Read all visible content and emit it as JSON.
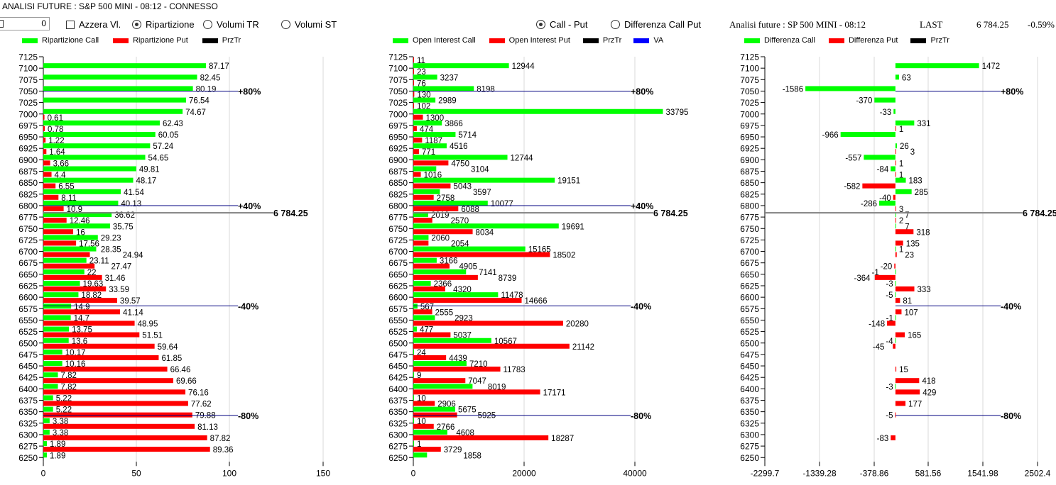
{
  "header": {
    "title": "ANALISI FUTURE : S&P 500 MINI - 08:12 - CONNESSO",
    "number_input_value": "0",
    "azzera_label": "Azzera Vl.",
    "radio_left": [
      {
        "label": "Ripartizione",
        "selected": true
      },
      {
        "label": "Volumi TR",
        "selected": false
      },
      {
        "label": "Volumi ST",
        "selected": false
      }
    ],
    "radio_mid": [
      {
        "label": "Call - Put",
        "selected": true
      },
      {
        "label": "Differenza Call Put",
        "selected": false
      }
    ],
    "right_title": "Analisi future : SP 500 MINI - 08:12",
    "last_label": "LAST",
    "last_value": "6 784.25",
    "last_change": "-0.59%"
  },
  "colors": {
    "call": "#00ff00",
    "put": "#ff0000",
    "przTr": "#000000",
    "va": "#0000ff",
    "level_line": "#000080",
    "price_line": "#808080",
    "grid": "#d8d8d8"
  },
  "chart_data": [
    {
      "type": "bar",
      "orientation": "horizontal",
      "title": "Ripartizione",
      "legend": [
        "Ripartizione Call",
        "Ripartizione Put",
        "PrzTr"
      ],
      "categories": [
        "7125",
        "7100",
        "7075",
        "7050",
        "7025",
        "7000",
        "6975",
        "6950",
        "6925",
        "6900",
        "6875",
        "6850",
        "6825",
        "6800",
        "6775",
        "6750",
        "6725",
        "6700",
        "6675",
        "6650",
        "6625",
        "6600",
        "6575",
        "6550",
        "6525",
        "6500",
        "6475",
        "6450",
        "6425",
        "6400",
        "6375",
        "6350",
        "6325",
        "6300",
        "6275",
        "6250"
      ],
      "series": [
        {
          "name": "Ripartizione Call",
          "values": [
            null,
            87.17,
            82.45,
            80.19,
            76.54,
            74.67,
            62.43,
            60.05,
            57.24,
            54.65,
            49.81,
            48.17,
            41.54,
            40.13,
            36.62,
            35.75,
            29.23,
            28.35,
            23.11,
            22,
            19.63,
            18.82,
            14.9,
            14.7,
            13.75,
            13.6,
            10.17,
            10.16,
            7.82,
            7.82,
            5.22,
            5.22,
            3.38,
            3.38,
            1.89,
            1.89
          ]
        },
        {
          "name": "Ripartizione Put",
          "values": [
            null,
            null,
            null,
            null,
            null,
            0.61,
            0.78,
            1.22,
            1.64,
            3.66,
            4.4,
            6.55,
            8.11,
            10.9,
            12.46,
            16,
            17.56,
            24.94,
            27.47,
            31.46,
            33.59,
            39.57,
            41.14,
            48.95,
            51.51,
            59.64,
            61.85,
            66.46,
            69.66,
            76.16,
            77.62,
            79.88,
            81.13,
            87.82,
            89.36,
            null
          ]
        }
      ],
      "xlim": [
        0,
        150
      ],
      "xticks": [
        "0",
        "50",
        "100",
        "150"
      ],
      "levels": [
        {
          "label": "+80%",
          "strike": 7050
        },
        {
          "label": "+40%",
          "strike": 6800
        },
        {
          "label": "-40%",
          "strike": 6581
        },
        {
          "label": "-80%",
          "strike": 6342
        }
      ],
      "price": {
        "label": "6 784.25",
        "value": 6784.25
      }
    },
    {
      "type": "bar",
      "orientation": "horizontal",
      "title": "Open Interest",
      "legend": [
        "Open Interest Call",
        "Open Interest Put",
        "PrzTr",
        "VA"
      ],
      "categories": [
        "7125",
        "7100",
        "7075",
        "7050",
        "7025",
        "7000",
        "6975",
        "6950",
        "6925",
        "6900",
        "6875",
        "6850",
        "6825",
        "6800",
        "6775",
        "6750",
        "6725",
        "6700",
        "6675",
        "6650",
        "6625",
        "6600",
        "6575",
        "6550",
        "6525",
        "6500",
        "6475",
        "6450",
        "6425",
        "6400",
        "6375",
        "6350",
        "6325",
        "6300",
        "6275",
        "6250"
      ],
      "series": [
        {
          "name": "Open Interest Call",
          "values": [
            null,
            12944,
            3237,
            8198,
            2989,
            33795,
            3866,
            5714,
            4516,
            12744,
            3104,
            19151,
            3597,
            10077,
            2019,
            19691,
            2060,
            15165,
            3166,
            7141,
            2366,
            11478,
            567,
            2923,
            477,
            10567,
            24,
            7210,
            9,
            8019,
            10,
            5675,
            10,
            4608,
            1,
            1858
          ]
        },
        {
          "name": "Open Interest Put",
          "values": [
            11,
            23,
            76,
            130,
            102,
            1300,
            474,
            1187,
            771,
            4750,
            1016,
            5043,
            2758,
            6088,
            2570,
            8034,
            2054,
            18502,
            4905,
            8739,
            4320,
            14666,
            2555,
            20280,
            5037,
            21142,
            4439,
            11783,
            7047,
            17171,
            2906,
            5925,
            2766,
            18287,
            3729,
            null
          ]
        }
      ],
      "xlim": [
        0,
        45000
      ],
      "xticks": [
        "0",
        "20000",
        "40000"
      ],
      "levels": [
        {
          "label": "+80%",
          "strike": 7050
        },
        {
          "label": "+40%",
          "strike": 6800
        },
        {
          "label": "-40%",
          "strike": 6581
        },
        {
          "label": "-80%",
          "strike": 6342
        }
      ],
      "price": {
        "label": "6 784.25",
        "value": 6784.25
      }
    },
    {
      "type": "bar",
      "orientation": "horizontal",
      "title": "Differenza",
      "legend": [
        "Differenza Call",
        "Differenza Put",
        "PrzTr"
      ],
      "categories": [
        "7125",
        "7100",
        "7075",
        "7050",
        "7025",
        "7000",
        "6975",
        "6950",
        "6925",
        "6900",
        "6875",
        "6850",
        "6825",
        "6800",
        "6775",
        "6750",
        "6725",
        "6700",
        "6675",
        "6650",
        "6625",
        "6600",
        "6575",
        "6550",
        "6525",
        "6500",
        "6475",
        "6450",
        "6425",
        "6400",
        "6375",
        "6350",
        "6325",
        "6300",
        "6275",
        "6250"
      ],
      "series": [
        {
          "name": "Differenza Call",
          "values": [
            null,
            1472,
            63,
            -1586,
            -370,
            -33,
            331,
            -966,
            26,
            -557,
            -84,
            183,
            285,
            -286,
            7,
            7,
            null,
            1,
            null,
            -1,
            -3,
            -5,
            null,
            -1,
            null,
            -4,
            null,
            null,
            null,
            -3,
            null,
            null,
            null,
            null,
            null,
            null
          ]
        },
        {
          "name": "Differenza Put",
          "values": [
            null,
            null,
            null,
            null,
            null,
            null,
            1,
            null,
            3,
            1,
            1,
            -582,
            -40,
            3,
            2,
            318,
            135,
            23,
            -20,
            -364,
            333,
            81,
            107,
            -148,
            165,
            -45,
            null,
            15,
            418,
            429,
            177,
            -5,
            null,
            -83,
            null,
            null
          ]
        }
      ],
      "xlim": [
        -2299.7,
        2502.4
      ],
      "xticks": [
        "-2299.7",
        "-1339.28",
        "-378.86",
        "581.56",
        "1541.98",
        "2502.4"
      ],
      "levels": [
        {
          "label": "+80%",
          "strike": 7050
        },
        {
          "label": "-40%",
          "strike": 6581
        },
        {
          "label": "-80%",
          "strike": 6342
        }
      ],
      "price": {
        "label": "6 784.25",
        "value": 6784.25
      }
    }
  ]
}
